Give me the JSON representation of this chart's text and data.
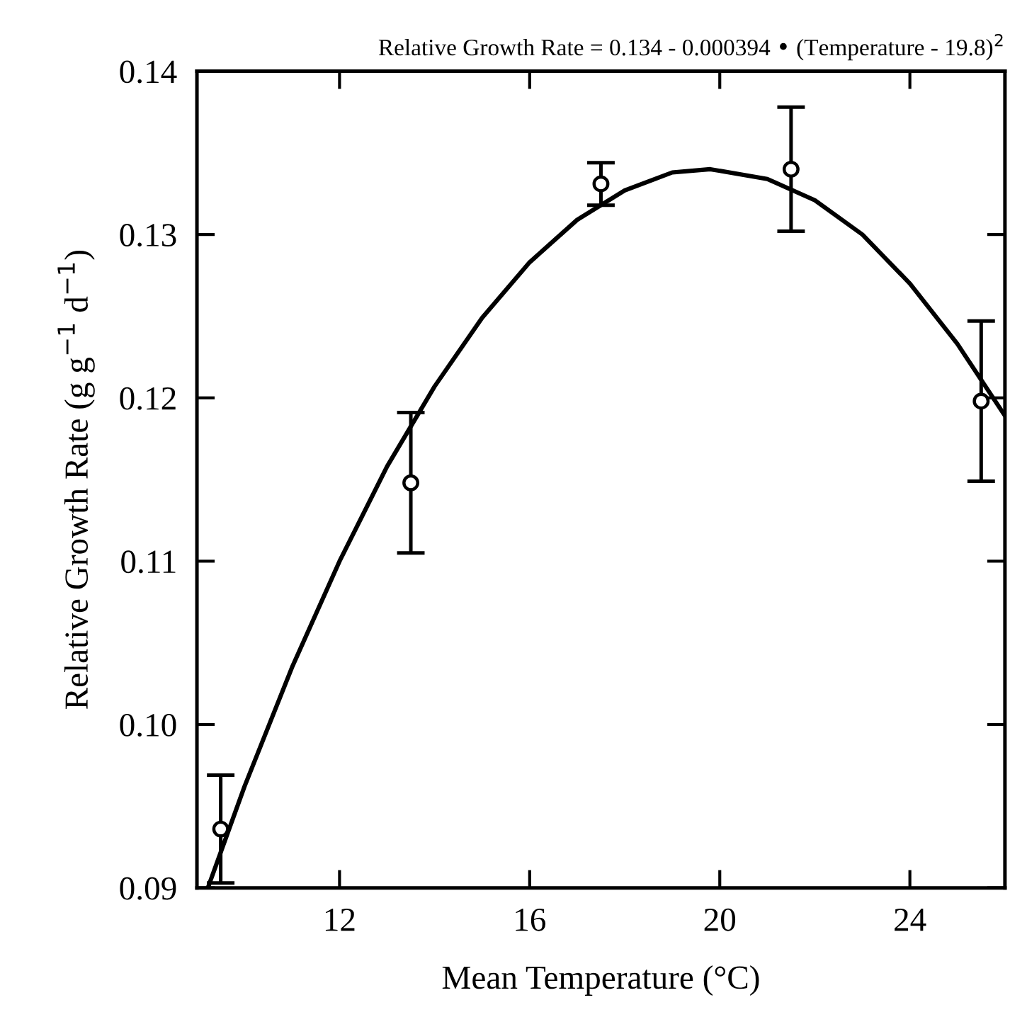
{
  "chart_data": {
    "type": "scatter",
    "title": "Relative Growth Rate = 0.134 - 0.000394 • (Temperature - 19.8)$^{2}$",
    "xlabel": "Mean Temperature (°C)",
    "ylabel": "Relative Growth Rate (g g$^{−1}$ d$^{−1}$)",
    "xlim": [
      9,
      26
    ],
    "xticks": [
      12,
      16,
      20,
      24
    ],
    "ylim": [
      0.09,
      0.14
    ],
    "yticks": [
      {
        "value": 0.09,
        "label": "0.09"
      },
      {
        "value": 0.1,
        "label": "0.10"
      },
      {
        "value": 0.11,
        "label": "0.11"
      },
      {
        "value": 0.12,
        "label": "0.12"
      },
      {
        "value": 0.13,
        "label": "0.13"
      },
      {
        "value": 0.14,
        "label": "0.14"
      }
    ],
    "grid": false,
    "legend": false,
    "series": [
      {
        "color": "#000000",
        "marker": "circle",
        "x": [
          9.5,
          13.5,
          17.5,
          21.5,
          25.5
        ],
        "values": [
          0.0936,
          0.1148,
          0.1331,
          0.134,
          0.1198
        ],
        "errors": [
          0.0033,
          0.0043,
          0.0013,
          0.0038,
          0.0049
        ]
      },
      {
        "type": "line",
        "color": "#000000",
        "marker": "none",
        "line_style": "solid",
        "x": [
          9.23,
          10,
          11,
          12,
          13,
          14,
          15,
          16,
          17,
          18,
          19,
          19.8,
          21,
          22,
          23,
          24,
          25,
          26
        ],
        "values": [
          0.09,
          0.0962,
          0.1035,
          0.11,
          0.1158,
          0.1207,
          0.1249,
          0.1283,
          0.1309,
          0.1327,
          0.1338,
          0.134,
          0.1334,
          0.1321,
          0.13,
          0.127,
          0.1233,
          0.1189
        ]
      }
    ]
  }
}
